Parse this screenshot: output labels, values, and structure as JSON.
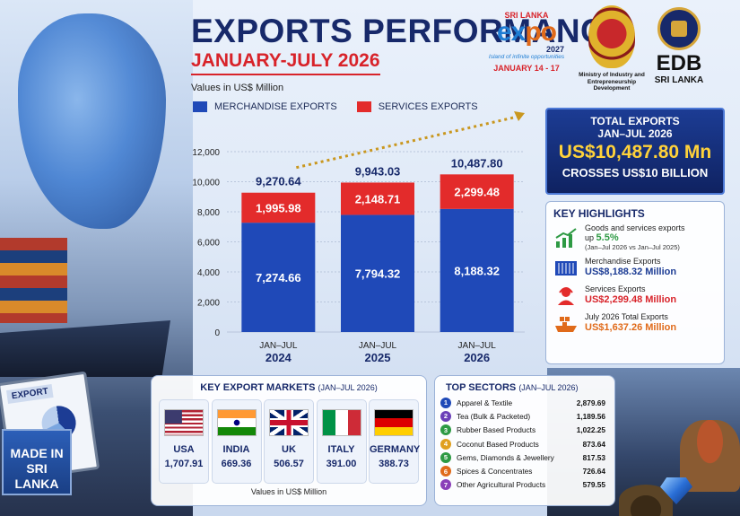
{
  "header": {
    "title": "EXPORTS PERFORMANCE",
    "subtitle": "JANUARY-JULY 2026",
    "units": "Values in US$ Million"
  },
  "legend": {
    "merchandise": "MERCHANDISE EXPORTS",
    "services": "SERVICES EXPORTS"
  },
  "colors": {
    "merchandise": "#1f49b8",
    "services": "#e32b2b",
    "navy": "#17296a",
    "gold": "#ffd23a"
  },
  "logos": {
    "expo_top": "SRI LANKA",
    "expo_name_1": "ex",
    "expo_name_2": "po",
    "expo_year": "2027",
    "expo_tagline": "Island of infinite opportunities",
    "expo_dates": "JANUARY 14 - 17",
    "ministry": "Ministry of Industry and Entrepreneurship Development",
    "edb_name": "EDB",
    "edb_country": "SRI LANKA"
  },
  "chart_data": {
    "type": "bar",
    "stacked": true,
    "categories": [
      "JAN–JUL 2024",
      "JAN–JUL 2025",
      "JAN–JUL 2026"
    ],
    "category_line1": [
      "JAN–JUL",
      "JAN–JUL",
      "JAN–JUL"
    ],
    "category_line2": [
      "2024",
      "2025",
      "2026"
    ],
    "series": [
      {
        "name": "MERCHANDISE EXPORTS",
        "values": [
          7274.66,
          7794.32,
          8188.32
        ],
        "labels": [
          "7,274.66",
          "7,794.32",
          "8,188.32"
        ]
      },
      {
        "name": "SERVICES EXPORTS",
        "values": [
          1995.98,
          2148.71,
          2299.48
        ],
        "labels": [
          "1,995.98",
          "2,148.71",
          "2,299.48"
        ]
      }
    ],
    "totals": [
      9270.64,
      9943.03,
      10487.8
    ],
    "total_labels": [
      "9,270.64",
      "9,943.03",
      "10,487.80"
    ],
    "ylim": [
      0,
      12000
    ],
    "yticks": [
      0,
      2000,
      4000,
      6000,
      8000,
      10000,
      12000
    ],
    "ytick_labels": [
      "0",
      "2,000",
      "4,000",
      "6,000",
      "8,000",
      "10,000",
      "12,000"
    ],
    "grid": true
  },
  "total_box": {
    "line1": "TOTAL EXPORTS",
    "line2": "JAN–JUL 2026",
    "amount": "US$10,487.80 Mn",
    "note": "CROSSES US$10 BILLION"
  },
  "highlights": {
    "heading": "KEY HIGHLIGHTS",
    "growth_label": "Goods and services exports",
    "growth_prefix": "up",
    "growth_value": "5.5%",
    "growth_note": "(Jan–Jul 2026 vs Jan–Jul 2025)",
    "merch_label": "Merchandise Exports",
    "merch_value": "US$8,188.32 Million",
    "services_label": "Services Exports",
    "services_value": "US$2,299.48 Million",
    "july_label": "July 2026 Total Exports",
    "july_value": "US$1,637.26 Million"
  },
  "markets": {
    "heading": "KEY EXPORT MARKETS",
    "period": "(JAN–JUL 2026)",
    "footer": "Values in US$ Million",
    "items": [
      {
        "name": "USA",
        "value": "1,707.91"
      },
      {
        "name": "INDIA",
        "value": "669.36"
      },
      {
        "name": "UK",
        "value": "506.57"
      },
      {
        "name": "ITALY",
        "value": "391.00"
      },
      {
        "name": "GERMANY",
        "value": "388.73"
      }
    ]
  },
  "sectors": {
    "heading": "TOP SECTORS",
    "period": "(JAN–JUL 2026)",
    "items": [
      {
        "num": "1",
        "name": "Apparel & Textile",
        "value": "2,879.69",
        "color": "#1f49b8"
      },
      {
        "num": "2",
        "name": "Tea (Bulk & Packeted)",
        "value": "1,189.56",
        "color": "#6b3fb8"
      },
      {
        "num": "3",
        "name": "Rubber Based Products",
        "value": "1,022.25",
        "color": "#2e9a44"
      },
      {
        "num": "4",
        "name": "Coconut Based Products",
        "value": "873.64",
        "color": "#e0a020"
      },
      {
        "num": "5",
        "name": "Gems, Diamonds & Jewellery",
        "value": "817.53",
        "color": "#2e9a44"
      },
      {
        "num": "6",
        "name": "Spices & Concentrates",
        "value": "726.64",
        "color": "#e06a1a"
      },
      {
        "num": "7",
        "name": "Other Agricultural Products",
        "value": "579.55",
        "color": "#8a3fb8"
      }
    ]
  },
  "decor": {
    "clipboard_label": "EXPORT",
    "crate_label_1": "MADE IN",
    "crate_label_2": "SRI LANKA"
  }
}
